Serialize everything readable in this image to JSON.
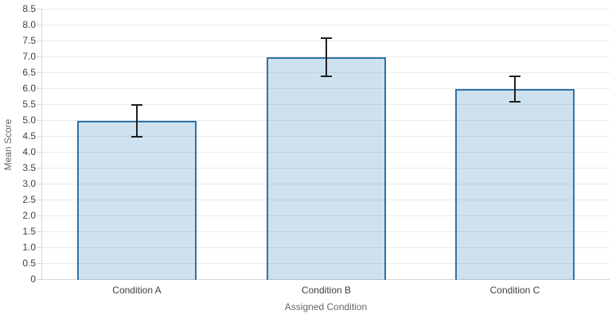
{
  "chart_data": {
    "type": "bar",
    "title": "",
    "categories": [
      "Condition A",
      "Condition B",
      "Condition C"
    ],
    "values": [
      5.0,
      7.0,
      6.0
    ],
    "errors": [
      0.5,
      0.6,
      0.4
    ],
    "xlabel": "Assigned Condition",
    "ylabel": "Mean Score",
    "ylim": [
      0,
      8.5
    ],
    "ytick_step": 0.5,
    "ytick_labels": [
      "0",
      "0.5",
      "1.0",
      "1.5",
      "2.0",
      "2.5",
      "3.0",
      "3.5",
      "4.0",
      "4.5",
      "5.0",
      "5.5",
      "6.0",
      "6.5",
      "7.0",
      "7.5",
      "8.0",
      "8.5"
    ],
    "grid": true,
    "legend": null,
    "colors": {
      "bar_fill": "rgba(31,119,180,0.22)",
      "bar_border": "#2d73a8",
      "error_bar": "#1f1f1f",
      "gridline": "#e9e9e9",
      "axis_line": "#d4d4d4",
      "tick_text": "#3f3f3f",
      "axis_title_text": "#666666",
      "background": "#ffffff"
    }
  }
}
